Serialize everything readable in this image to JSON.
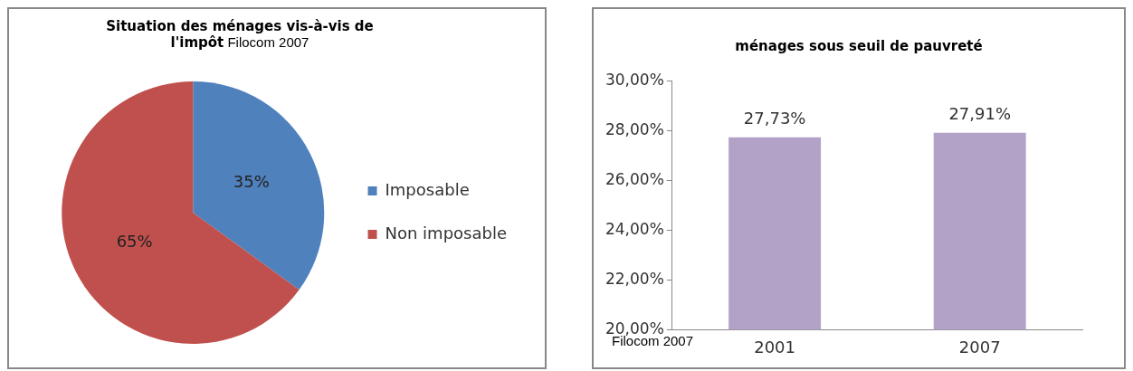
{
  "chart_data": [
    {
      "type": "pie",
      "title": "Situation des ménages vis-à-vis de l'impôt",
      "annotations": [
        "Filocom 2007"
      ],
      "categories": [
        "Imposable",
        "Non imposable"
      ],
      "values": [
        35,
        65
      ],
      "colors": [
        "#4f81bd",
        "#c0504d"
      ],
      "value_labels": [
        "35%",
        "65%"
      ],
      "legend": "right"
    },
    {
      "type": "bar",
      "title": "ménages sous seuil de pauvreté",
      "annotations": [
        "Filocom 2007"
      ],
      "categories": [
        "2001",
        "2007"
      ],
      "values": [
        27.73,
        27.91
      ],
      "color": "#b3a2c7",
      "value_labels": [
        "27,73%",
        "27,91%"
      ],
      "ylim": [
        20,
        30
      ],
      "yticks": [
        {
          "value": 20,
          "label": "20,00%"
        },
        {
          "value": 22,
          "label": "22,00%"
        },
        {
          "value": 24,
          "label": "24,00%"
        },
        {
          "value": 26,
          "label": "26,00%"
        },
        {
          "value": 28,
          "label": "28,00%"
        },
        {
          "value": 30,
          "label": "30,00%"
        }
      ],
      "legend": false
    }
  ]
}
